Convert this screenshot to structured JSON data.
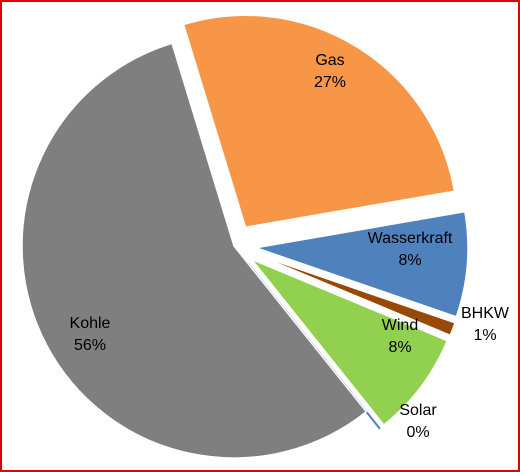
{
  "chart_data": {
    "type": "pie",
    "categories": [
      "Gas",
      "Wasserkraft",
      "BHKW",
      "Wind",
      "Solar",
      "Kohle"
    ],
    "values": [
      27,
      8,
      1,
      8,
      0,
      56
    ],
    "value_labels": [
      "27%",
      "8%",
      "1%",
      "8%",
      "0%",
      "56%"
    ],
    "colors": [
      "#f79646",
      "#4f81bd",
      "#984807",
      "#92d050",
      "#4f81bd",
      "#7f7f7f"
    ],
    "exploded": [
      true,
      true,
      true,
      true,
      true,
      false
    ]
  }
}
